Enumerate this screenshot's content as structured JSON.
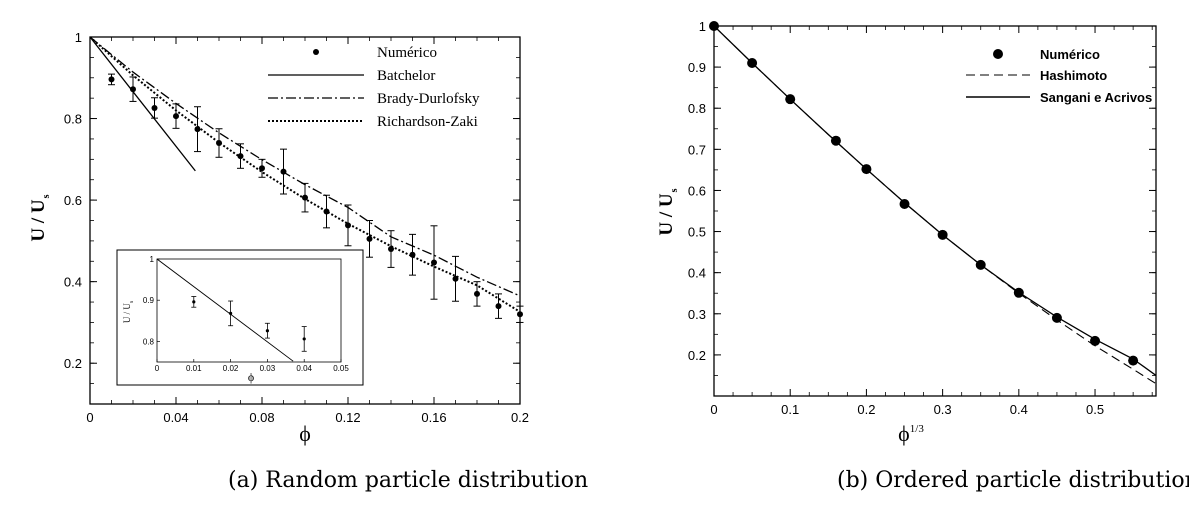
{
  "captions": {
    "a": "(a) Random particle distribution",
    "b": "(b) Ordered particle distribution"
  },
  "chart_data": [
    {
      "type": "line",
      "xlabel": "ϕ",
      "ylabel": "U / U",
      "ylabel_sub": "s",
      "xlim": [
        0,
        0.2
      ],
      "ylim": [
        0.1,
        1
      ],
      "xticks": [
        "0",
        "0.04",
        "0.08",
        "0.12",
        "0.16",
        "0.2"
      ],
      "xtick_values": [
        0,
        0.04,
        0.08,
        0.12,
        0.16,
        0.2
      ],
      "yticks": [
        "0.2",
        "0.4",
        "0.6",
        "0.8",
        "1"
      ],
      "ytick_values": [
        0.2,
        0.4,
        0.6,
        0.8,
        1.0
      ],
      "legend": {
        "placement": "top-right",
        "entries": [
          "Numérico",
          "Batchelor",
          "Brady-Durlofsky",
          "Richardson-Zaki"
        ]
      },
      "series": [
        {
          "name": "Numérico",
          "kind": "points-errorbars",
          "x": [
            0.01,
            0.02,
            0.03,
            0.04,
            0.05,
            0.06,
            0.07,
            0.08,
            0.09,
            0.1,
            0.11,
            0.12,
            0.13,
            0.14,
            0.15,
            0.16,
            0.17,
            0.18,
            0.19,
            0.2
          ],
          "y": [
            0.896,
            0.872,
            0.826,
            0.806,
            0.774,
            0.74,
            0.708,
            0.678,
            0.67,
            0.606,
            0.572,
            0.538,
            0.505,
            0.48,
            0.466,
            0.447,
            0.407,
            0.37,
            0.34,
            0.32
          ],
          "err": [
            0.013,
            0.03,
            0.025,
            0.03,
            0.055,
            0.035,
            0.03,
            0.022,
            0.055,
            0.035,
            0.04,
            0.05,
            0.045,
            0.045,
            0.05,
            0.09,
            0.055,
            0.03,
            0.03,
            0.02
          ]
        },
        {
          "name": "Batchelor",
          "kind": "solid",
          "x": [
            0,
            0.049
          ],
          "y": [
            1.0,
            0.6717
          ]
        },
        {
          "name": "Brady-Durlofsky",
          "kind": "dashdot",
          "x": [
            0,
            0.02,
            0.04,
            0.06,
            0.08,
            0.1,
            0.12,
            0.14,
            0.16,
            0.18,
            0.2
          ],
          "y": [
            1.0,
            0.914,
            0.837,
            0.765,
            0.699,
            0.638,
            0.582,
            0.51,
            0.465,
            0.411,
            0.365
          ]
        },
        {
          "name": "Richardson-Zaki",
          "kind": "dotted",
          "x": [
            0,
            0.02,
            0.04,
            0.06,
            0.08,
            0.1,
            0.12,
            0.14,
            0.16,
            0.18,
            0.2
          ],
          "y": [
            1.0,
            0.906,
            0.82,
            0.741,
            0.669,
            0.603,
            0.542,
            0.487,
            0.437,
            0.391,
            0.326
          ]
        }
      ],
      "inset": {
        "xlabel": "ϕ",
        "ylabel": "U / U",
        "ylabel_sub": "s",
        "xlim": [
          0,
          0.05
        ],
        "ylim": [
          0.75,
          1
        ],
        "xticks": [
          "0",
          "0.01",
          "0.02",
          "0.03",
          "0.04",
          "0.05"
        ],
        "xtick_values": [
          0,
          0.01,
          0.02,
          0.03,
          0.04,
          0.05
        ],
        "yticks": [
          "0.8",
          "0.9",
          "1"
        ],
        "ytick_values": [
          0.8,
          0.9,
          1.0
        ],
        "points": {
          "x": [
            0.01,
            0.02,
            0.03,
            0.04
          ],
          "y": [
            0.896,
            0.868,
            0.826,
            0.806
          ],
          "err": [
            0.013,
            0.03,
            0.018,
            0.03
          ]
        },
        "line": {
          "x": [
            0,
            0.037
          ],
          "y": [
            1.0,
            0.752
          ]
        }
      }
    },
    {
      "type": "line",
      "xlabel": "ϕ",
      "xlabel_sup": "1/3",
      "ylabel": "U / U",
      "ylabel_sub": "s",
      "xlim": [
        0,
        0.58
      ],
      "ylim": [
        0.1,
        1
      ],
      "xticks": [
        "0",
        "0.1",
        "0.2",
        "0.3",
        "0.4",
        "0.5"
      ],
      "xtick_values": [
        0,
        0.1,
        0.2,
        0.3,
        0.4,
        0.5
      ],
      "yticks": [
        "0.2",
        "0.3",
        "0.4",
        "0.5",
        "0.6",
        "0.7",
        "0.8",
        "0.9",
        "1"
      ],
      "ytick_values": [
        0.2,
        0.3,
        0.4,
        0.5,
        0.6,
        0.7,
        0.8,
        0.9,
        1.0
      ],
      "legend": {
        "placement": "top-right",
        "entries": [
          "Numérico",
          "Hashimoto",
          "Sangani e Acrivos"
        ]
      },
      "series": [
        {
          "name": "Numérico",
          "kind": "points",
          "x": [
            0,
            0.05,
            0.1,
            0.16,
            0.2,
            0.25,
            0.3,
            0.35,
            0.4,
            0.45,
            0.5,
            0.55
          ],
          "y": [
            1.0,
            0.91,
            0.822,
            0.721,
            0.652,
            0.567,
            0.492,
            0.419,
            0.351,
            0.29,
            0.234,
            0.186
          ]
        },
        {
          "name": "Hashimoto",
          "kind": "dashed",
          "x": [
            0,
            0.05,
            0.1,
            0.15,
            0.2,
            0.25,
            0.3,
            0.35,
            0.4,
            0.45,
            0.5,
            0.55,
            0.58
          ],
          "y": [
            1.0,
            0.91,
            0.822,
            0.736,
            0.652,
            0.57,
            0.492,
            0.419,
            0.35,
            0.285,
            0.222,
            0.165,
            0.13
          ]
        },
        {
          "name": "Sangani e Acrivos",
          "kind": "solid",
          "x": [
            0,
            0.05,
            0.1,
            0.15,
            0.2,
            0.25,
            0.3,
            0.35,
            0.4,
            0.45,
            0.5,
            0.55,
            0.58
          ],
          "y": [
            1.0,
            0.91,
            0.822,
            0.736,
            0.652,
            0.57,
            0.492,
            0.419,
            0.352,
            0.292,
            0.238,
            0.19,
            0.15
          ]
        }
      ]
    }
  ]
}
